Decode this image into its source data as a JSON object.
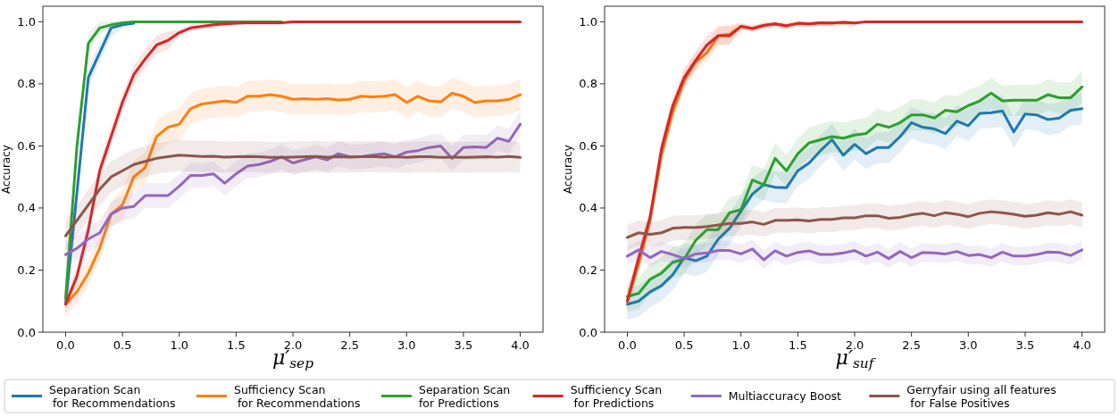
{
  "chart_data": [
    {
      "type": "line",
      "xlabel": "μ′$_{sep}$",
      "ylabel": "Accuracy",
      "xlim": [
        -0.2,
        4.2
      ],
      "ylim": [
        0,
        1.05
      ],
      "xticks": [
        {
          "value": 0,
          "label": "0.0"
        },
        {
          "value": 0.5,
          "label": "0.5"
        },
        {
          "value": 1,
          "label": "1.0"
        },
        {
          "value": 1.5,
          "label": "1.5"
        },
        {
          "value": 2,
          "label": "2.0"
        },
        {
          "value": 2.5,
          "label": "2.5"
        },
        {
          "value": 3,
          "label": "3.0"
        },
        {
          "value": 3.5,
          "label": "3.5"
        },
        {
          "value": 4,
          "label": "4.0"
        }
      ],
      "yticks": [
        {
          "value": 0,
          "label": "0.0"
        },
        {
          "value": 0.2,
          "label": "0.2"
        },
        {
          "value": 0.4,
          "label": "0.4"
        },
        {
          "value": 0.6,
          "label": "0.6"
        },
        {
          "value": 0.8,
          "label": "0.8"
        },
        {
          "value": 1,
          "label": "1.0"
        }
      ],
      "grid": false,
      "legend": "bottom",
      "marker": "none",
      "line_style": "solid",
      "x": [
        0,
        0.1,
        0.2,
        0.3,
        0.4,
        0.5,
        0.6,
        0.7,
        0.8,
        0.9,
        1,
        1.1,
        1.2,
        1.3,
        1.4,
        1.5,
        1.6,
        1.7,
        1.8,
        1.9,
        2,
        2.1,
        2.2,
        2.3,
        2.4,
        2.5,
        2.6,
        2.7,
        2.8,
        2.9,
        3,
        3.1,
        3.2,
        3.3,
        3.4,
        3.5,
        3.6,
        3.7,
        3.8,
        3.9,
        4
      ],
      "series": [
        {
          "name": "Separation Scan\n for Recommendations",
          "color": "#1f77b4",
          "values": [
            0.09,
            0.45,
            0.82,
            0.9,
            0.98,
            0.99,
            0.995,
            null,
            null,
            null,
            null,
            null,
            null,
            null,
            null,
            null,
            null,
            null,
            null,
            null,
            null,
            null,
            null,
            null,
            null,
            null,
            null,
            null,
            null,
            null,
            null,
            null,
            null,
            null,
            null,
            null,
            null,
            null,
            null,
            null,
            null
          ],
          "lower": [
            0.06,
            0.42,
            0.79,
            0.87,
            0.95,
            0.98,
            0.99,
            null,
            null,
            null,
            null,
            null,
            null,
            null,
            null,
            null,
            null,
            null,
            null,
            null,
            null,
            null,
            null,
            null,
            null,
            null,
            null,
            null,
            null,
            null,
            null,
            null,
            null,
            null,
            null,
            null,
            null,
            null,
            null,
            null,
            null
          ],
          "upper": [
            0.12,
            0.48,
            0.85,
            0.93,
            1,
            1,
            1,
            null,
            null,
            null,
            null,
            null,
            null,
            null,
            null,
            null,
            null,
            null,
            null,
            null,
            null,
            null,
            null,
            null,
            null,
            null,
            null,
            null,
            null,
            null,
            null,
            null,
            null,
            null,
            null,
            null,
            null,
            null,
            null,
            null,
            null
          ]
        },
        {
          "name": "Sufficiency Scan\n for Recommendations",
          "color": "#ff7f0e",
          "values": [
            0.09,
            0.13,
            0.19,
            0.27,
            0.38,
            0.41,
            0.5,
            0.53,
            0.63,
            0.66,
            0.67,
            0.72,
            0.735,
            0.74,
            0.745,
            0.74,
            0.76,
            0.76,
            0.765,
            0.76,
            0.75,
            0.752,
            0.75,
            0.752,
            0.748,
            0.75,
            0.76,
            0.758,
            0.76,
            0.765,
            0.74,
            0.76,
            0.745,
            0.742,
            0.77,
            0.76,
            0.74,
            0.745,
            0.745,
            0.75,
            0.765
          ],
          "lower": [
            0.05,
            0.09,
            0.15,
            0.23,
            0.34,
            0.36,
            0.45,
            0.48,
            0.58,
            0.61,
            0.62,
            0.67,
            0.685,
            0.69,
            0.695,
            0.69,
            0.71,
            0.71,
            0.715,
            0.71,
            0.7,
            0.702,
            0.7,
            0.702,
            0.698,
            0.7,
            0.71,
            0.708,
            0.71,
            0.715,
            0.69,
            0.71,
            0.695,
            0.692,
            0.72,
            0.71,
            0.69,
            0.695,
            0.695,
            0.7,
            0.715
          ],
          "upper": [
            0.13,
            0.17,
            0.23,
            0.31,
            0.42,
            0.46,
            0.55,
            0.58,
            0.68,
            0.71,
            0.72,
            0.77,
            0.785,
            0.79,
            0.795,
            0.79,
            0.81,
            0.81,
            0.815,
            0.81,
            0.8,
            0.802,
            0.8,
            0.802,
            0.798,
            0.8,
            0.81,
            0.808,
            0.81,
            0.815,
            0.79,
            0.81,
            0.795,
            0.792,
            0.82,
            0.81,
            0.79,
            0.795,
            0.795,
            0.8,
            0.815
          ]
        },
        {
          "name": "Separation Scan\nfor Predictions",
          "color": "#2ca02c",
          "values": [
            0.11,
            0.6,
            0.93,
            0.98,
            0.99,
            0.997,
            1,
            1,
            1,
            1,
            1,
            1,
            1,
            1,
            1,
            1,
            1,
            1,
            1,
            1,
            null,
            null,
            null,
            null,
            null,
            null,
            null,
            null,
            null,
            null,
            null,
            null,
            null,
            null,
            null,
            null,
            null,
            null,
            null,
            null,
            null
          ],
          "lower": [
            0.08,
            0.57,
            0.9,
            0.96,
            0.98,
            0.99,
            1,
            1,
            1,
            1,
            1,
            1,
            1,
            1,
            1,
            1,
            1,
            1,
            1,
            1,
            null,
            null,
            null,
            null,
            null,
            null,
            null,
            null,
            null,
            null,
            null,
            null,
            null,
            null,
            null,
            null,
            null,
            null,
            null,
            null,
            null
          ],
          "upper": [
            0.14,
            0.63,
            0.96,
            1,
            1,
            1,
            1,
            1,
            1,
            1,
            1,
            1,
            1,
            1,
            1,
            1,
            1,
            1,
            1,
            1,
            null,
            null,
            null,
            null,
            null,
            null,
            null,
            null,
            null,
            null,
            null,
            null,
            null,
            null,
            null,
            null,
            null,
            null,
            null,
            null,
            null
          ]
        },
        {
          "name": "Sufficiency Scan\n for Predictions",
          "color": "#d62728",
          "values": [
            0.09,
            0.18,
            0.33,
            0.52,
            0.63,
            0.74,
            0.83,
            0.88,
            0.925,
            0.94,
            0.965,
            0.98,
            0.985,
            0.99,
            0.993,
            0.995,
            0.997,
            0.997,
            0.997,
            0.997,
            1,
            1,
            1,
            1,
            1,
            1,
            1,
            1,
            1,
            1,
            1,
            1,
            1,
            1,
            1,
            1,
            1,
            1,
            1,
            1,
            1
          ],
          "lower": [
            0.06,
            0.15,
            0.3,
            0.49,
            0.6,
            0.71,
            0.8,
            0.85,
            0.895,
            0.91,
            0.955,
            0.97,
            0.975,
            0.98,
            0.985,
            0.99,
            0.99,
            0.99,
            0.99,
            0.99,
            1,
            1,
            1,
            1,
            1,
            1,
            1,
            1,
            1,
            1,
            1,
            1,
            1,
            1,
            1,
            1,
            1,
            1,
            1,
            1,
            1
          ],
          "upper": [
            0.12,
            0.21,
            0.36,
            0.55,
            0.66,
            0.77,
            0.86,
            0.91,
            0.955,
            0.97,
            0.975,
            0.99,
            0.995,
            1,
            1,
            1,
            1,
            1,
            1,
            1,
            1,
            1,
            1,
            1,
            1,
            1,
            1,
            1,
            1,
            1,
            1,
            1,
            1,
            1,
            1,
            1,
            1,
            1,
            1,
            1,
            1
          ]
        },
        {
          "name": "Multiaccuracy Boost",
          "color": "#9467bd",
          "values": [
            0.25,
            0.27,
            0.3,
            0.32,
            0.38,
            0.4,
            0.405,
            0.44,
            0.44,
            0.44,
            0.47,
            0.505,
            0.505,
            0.51,
            0.48,
            0.51,
            0.535,
            0.54,
            0.55,
            0.565,
            0.545,
            0.555,
            0.565,
            0.555,
            0.575,
            0.565,
            0.565,
            0.57,
            0.575,
            0.565,
            0.58,
            0.585,
            0.595,
            0.6,
            0.56,
            0.595,
            0.597,
            0.595,
            0.625,
            0.615,
            0.67
          ],
          "lower": [
            0.21,
            0.23,
            0.26,
            0.28,
            0.34,
            0.36,
            0.365,
            0.4,
            0.4,
            0.4,
            0.43,
            0.465,
            0.465,
            0.47,
            0.44,
            0.47,
            0.495,
            0.5,
            0.51,
            0.525,
            0.505,
            0.515,
            0.525,
            0.515,
            0.535,
            0.525,
            0.525,
            0.53,
            0.535,
            0.525,
            0.54,
            0.545,
            0.555,
            0.56,
            0.52,
            0.555,
            0.557,
            0.555,
            0.585,
            0.575,
            0.63
          ],
          "upper": [
            0.29,
            0.31,
            0.34,
            0.36,
            0.42,
            0.44,
            0.445,
            0.48,
            0.48,
            0.48,
            0.51,
            0.545,
            0.545,
            0.55,
            0.52,
            0.55,
            0.575,
            0.58,
            0.59,
            0.605,
            0.585,
            0.595,
            0.605,
            0.595,
            0.615,
            0.605,
            0.605,
            0.61,
            0.615,
            0.605,
            0.62,
            0.625,
            0.635,
            0.64,
            0.6,
            0.635,
            0.637,
            0.635,
            0.665,
            0.655,
            0.71
          ]
        },
        {
          "name": "Gerryfair using all features\n for False Positives",
          "color": "#8c564b",
          "values": [
            0.31,
            0.36,
            0.41,
            0.46,
            0.5,
            0.52,
            0.54,
            0.55,
            0.56,
            0.565,
            0.57,
            0.568,
            0.566,
            0.567,
            0.564,
            0.565,
            0.566,
            0.565,
            0.563,
            0.563,
            0.564,
            0.565,
            0.566,
            0.564,
            0.565,
            0.564,
            0.565,
            0.566,
            0.564,
            0.565,
            0.563,
            0.565,
            0.565,
            0.563,
            0.564,
            0.563,
            0.564,
            0.565,
            0.564,
            0.566,
            0.563
          ],
          "lower": [
            0.26,
            0.31,
            0.36,
            0.41,
            0.45,
            0.47,
            0.49,
            0.5,
            0.51,
            0.515,
            0.52,
            0.518,
            0.516,
            0.517,
            0.514,
            0.515,
            0.516,
            0.515,
            0.513,
            0.513,
            0.514,
            0.515,
            0.516,
            0.514,
            0.515,
            0.514,
            0.515,
            0.516,
            0.514,
            0.515,
            0.513,
            0.515,
            0.515,
            0.513,
            0.514,
            0.513,
            0.514,
            0.515,
            0.514,
            0.516,
            0.513
          ],
          "upper": [
            0.36,
            0.41,
            0.46,
            0.51,
            0.55,
            0.57,
            0.59,
            0.6,
            0.61,
            0.615,
            0.62,
            0.618,
            0.616,
            0.617,
            0.614,
            0.615,
            0.616,
            0.615,
            0.613,
            0.613,
            0.614,
            0.615,
            0.616,
            0.614,
            0.615,
            0.614,
            0.615,
            0.616,
            0.614,
            0.615,
            0.613,
            0.615,
            0.615,
            0.613,
            0.614,
            0.613,
            0.614,
            0.615,
            0.614,
            0.616,
            0.613
          ]
        }
      ]
    },
    {
      "type": "line",
      "xlabel": "μ′$_{suf}$",
      "ylabel": "Accuracy",
      "xlim": [
        -0.2,
        4.2
      ],
      "ylim": [
        0,
        1.05
      ],
      "xticks": [
        {
          "value": 0,
          "label": "0.0"
        },
        {
          "value": 0.5,
          "label": "0.5"
        },
        {
          "value": 1,
          "label": "1.0"
        },
        {
          "value": 1.5,
          "label": "1.5"
        },
        {
          "value": 2,
          "label": "2.0"
        },
        {
          "value": 2.5,
          "label": "2.5"
        },
        {
          "value": 3,
          "label": "3.0"
        },
        {
          "value": 3.5,
          "label": "3.5"
        },
        {
          "value": 4,
          "label": "4.0"
        }
      ],
      "yticks": [
        {
          "value": 0,
          "label": "0.0"
        },
        {
          "value": 0.2,
          "label": "0.2"
        },
        {
          "value": 0.4,
          "label": "0.4"
        },
        {
          "value": 0.6,
          "label": "0.6"
        },
        {
          "value": 0.8,
          "label": "0.8"
        },
        {
          "value": 1,
          "label": "1.0"
        }
      ],
      "grid": false,
      "marker": "none",
      "line_style": "solid",
      "x": [
        0,
        0.1,
        0.2,
        0.3,
        0.4,
        0.5,
        0.6,
        0.7,
        0.8,
        0.9,
        1,
        1.1,
        1.2,
        1.3,
        1.4,
        1.5,
        1.6,
        1.7,
        1.8,
        1.9,
        2,
        2.1,
        2.2,
        2.3,
        2.4,
        2.5,
        2.6,
        2.7,
        2.8,
        2.9,
        3,
        3.1,
        3.2,
        3.3,
        3.4,
        3.5,
        3.6,
        3.7,
        3.8,
        3.9,
        4
      ],
      "series": [
        {
          "color": "#1f77b4",
          "values": [
            0.09,
            0.1,
            0.13,
            0.15,
            0.185,
            0.24,
            0.23,
            0.245,
            0.3,
            0.335,
            0.39,
            0.445,
            0.475,
            0.467,
            0.465,
            0.52,
            0.545,
            0.585,
            0.62,
            0.57,
            0.605,
            0.575,
            0.595,
            0.595,
            0.63,
            0.675,
            0.66,
            0.655,
            0.64,
            0.68,
            0.665,
            0.705,
            0.707,
            0.713,
            0.645,
            0.703,
            0.7,
            0.685,
            0.69,
            0.715,
            0.72
          ],
          "lower": [
            0.04,
            0.05,
            0.08,
            0.1,
            0.135,
            0.19,
            0.18,
            0.195,
            0.25,
            0.285,
            0.34,
            0.395,
            0.425,
            0.417,
            0.415,
            0.47,
            0.495,
            0.535,
            0.57,
            0.52,
            0.555,
            0.525,
            0.545,
            0.545,
            0.58,
            0.625,
            0.61,
            0.605,
            0.59,
            0.63,
            0.615,
            0.655,
            0.657,
            0.663,
            0.595,
            0.653,
            0.65,
            0.635,
            0.64,
            0.665,
            0.67
          ],
          "upper": [
            0.14,
            0.15,
            0.18,
            0.2,
            0.235,
            0.29,
            0.28,
            0.295,
            0.35,
            0.385,
            0.44,
            0.495,
            0.525,
            0.517,
            0.515,
            0.57,
            0.595,
            0.635,
            0.67,
            0.62,
            0.655,
            0.625,
            0.645,
            0.645,
            0.68,
            0.725,
            0.71,
            0.705,
            0.69,
            0.73,
            0.715,
            0.755,
            0.757,
            0.763,
            0.695,
            0.753,
            0.75,
            0.735,
            0.74,
            0.765,
            0.77
          ]
        },
        {
          "color": "#ff7f0e",
          "values": [
            0.1,
            0.22,
            0.36,
            0.57,
            0.71,
            0.81,
            0.87,
            0.9,
            0.955,
            0.96,
            0.985,
            0.978,
            0.988,
            0.993,
            0.987,
            0.995,
            0.993,
            0.997,
            0.996,
            0.998,
            0.996,
            null,
            null,
            null,
            null,
            null,
            null,
            null,
            null,
            null,
            null,
            null,
            null,
            null,
            null,
            null,
            null,
            null,
            null,
            null,
            null
          ],
          "lower": [
            0.07,
            0.19,
            0.33,
            0.54,
            0.68,
            0.78,
            0.84,
            0.87,
            0.925,
            0.93,
            0.975,
            0.968,
            0.978,
            0.983,
            0.977,
            0.985,
            0.983,
            0.987,
            0.986,
            0.988,
            0.986,
            null,
            null,
            null,
            null,
            null,
            null,
            null,
            null,
            null,
            null,
            null,
            null,
            null,
            null,
            null,
            null,
            null,
            null,
            null,
            null
          ],
          "upper": [
            0.13,
            0.25,
            0.39,
            0.6,
            0.74,
            0.84,
            0.9,
            0.93,
            0.985,
            0.99,
            0.995,
            0.988,
            0.998,
            1,
            0.997,
            1,
            1,
            1,
            1,
            1,
            1,
            null,
            null,
            null,
            null,
            null,
            null,
            null,
            null,
            null,
            null,
            null,
            null,
            null,
            null,
            null,
            null,
            null,
            null,
            null,
            null
          ]
        },
        {
          "color": "#2ca02c",
          "values": [
            0.115,
            0.125,
            0.17,
            0.19,
            0.225,
            0.235,
            0.295,
            0.33,
            0.33,
            0.385,
            0.395,
            0.49,
            0.475,
            0.56,
            0.52,
            0.575,
            0.61,
            0.62,
            0.63,
            0.625,
            0.635,
            0.64,
            0.67,
            0.66,
            0.675,
            0.7,
            0.7,
            0.69,
            0.715,
            0.71,
            0.73,
            0.745,
            0.77,
            0.745,
            0.747,
            0.747,
            0.747,
            0.765,
            0.755,
            0.755,
            0.79
          ],
          "lower": [
            0.065,
            0.075,
            0.12,
            0.14,
            0.175,
            0.185,
            0.245,
            0.28,
            0.28,
            0.335,
            0.345,
            0.44,
            0.425,
            0.51,
            0.47,
            0.525,
            0.56,
            0.57,
            0.58,
            0.575,
            0.585,
            0.59,
            0.62,
            0.61,
            0.625,
            0.65,
            0.65,
            0.64,
            0.665,
            0.66,
            0.68,
            0.695,
            0.72,
            0.695,
            0.697,
            0.697,
            0.697,
            0.715,
            0.705,
            0.705,
            0.74
          ],
          "upper": [
            0.165,
            0.175,
            0.22,
            0.24,
            0.275,
            0.285,
            0.345,
            0.38,
            0.38,
            0.435,
            0.445,
            0.54,
            0.525,
            0.61,
            0.57,
            0.625,
            0.66,
            0.67,
            0.68,
            0.675,
            0.685,
            0.69,
            0.72,
            0.71,
            0.725,
            0.75,
            0.75,
            0.74,
            0.765,
            0.76,
            0.78,
            0.795,
            0.82,
            0.795,
            0.797,
            0.797,
            0.797,
            0.815,
            0.805,
            0.805,
            0.84
          ]
        },
        {
          "color": "#d62728",
          "values": [
            0.1,
            0.24,
            0.37,
            0.59,
            0.73,
            0.82,
            0.875,
            0.925,
            0.955,
            0.955,
            0.985,
            0.978,
            0.988,
            0.993,
            0.987,
            0.995,
            0.993,
            0.997,
            0.996,
            0.998,
            0.996,
            1,
            1,
            1,
            1,
            1,
            1,
            1,
            1,
            1,
            1,
            1,
            1,
            1,
            1,
            1,
            1,
            1,
            1,
            1,
            1
          ],
          "lower": [
            0.07,
            0.21,
            0.34,
            0.56,
            0.7,
            0.79,
            0.845,
            0.895,
            0.925,
            0.925,
            0.975,
            0.968,
            0.978,
            0.983,
            0.977,
            0.985,
            0.983,
            0.987,
            0.986,
            0.988,
            0.986,
            1,
            1,
            1,
            1,
            1,
            1,
            1,
            1,
            1,
            1,
            1,
            1,
            1,
            1,
            1,
            1,
            1,
            1,
            1,
            1
          ],
          "upper": [
            0.13,
            0.27,
            0.4,
            0.62,
            0.76,
            0.85,
            0.905,
            0.955,
            0.985,
            0.985,
            0.995,
            0.988,
            0.998,
            1,
            0.997,
            1,
            1,
            1,
            1,
            1,
            1,
            1,
            1,
            1,
            1,
            1,
            1,
            1,
            1,
            1,
            1,
            1,
            1,
            1,
            1,
            1,
            1,
            1,
            1,
            1,
            1
          ]
        },
        {
          "color": "#9467bd",
          "values": [
            0.245,
            0.265,
            0.24,
            0.26,
            0.25,
            0.237,
            0.252,
            0.255,
            0.263,
            0.263,
            0.252,
            0.268,
            0.233,
            0.262,
            0.245,
            0.257,
            0.262,
            0.25,
            0.25,
            0.255,
            0.263,
            0.245,
            0.258,
            0.237,
            0.26,
            0.24,
            0.257,
            0.255,
            0.252,
            0.26,
            0.247,
            0.25,
            0.24,
            0.258,
            0.245,
            0.245,
            0.25,
            0.258,
            0.257,
            0.247,
            0.265
          ],
          "lower": [
            0.215,
            0.235,
            0.21,
            0.23,
            0.22,
            0.207,
            0.222,
            0.225,
            0.233,
            0.233,
            0.222,
            0.238,
            0.203,
            0.232,
            0.215,
            0.227,
            0.232,
            0.22,
            0.22,
            0.225,
            0.233,
            0.215,
            0.228,
            0.207,
            0.23,
            0.21,
            0.227,
            0.225,
            0.222,
            0.23,
            0.217,
            0.22,
            0.21,
            0.228,
            0.215,
            0.215,
            0.22,
            0.228,
            0.227,
            0.217,
            0.235
          ],
          "upper": [
            0.275,
            0.295,
            0.27,
            0.29,
            0.28,
            0.267,
            0.282,
            0.285,
            0.293,
            0.293,
            0.282,
            0.298,
            0.263,
            0.292,
            0.275,
            0.287,
            0.292,
            0.28,
            0.28,
            0.285,
            0.293,
            0.275,
            0.288,
            0.267,
            0.29,
            0.27,
            0.287,
            0.285,
            0.282,
            0.29,
            0.277,
            0.28,
            0.27,
            0.288,
            0.275,
            0.275,
            0.28,
            0.288,
            0.287,
            0.277,
            0.295
          ]
        },
        {
          "color": "#8c564b",
          "values": [
            0.305,
            0.32,
            0.315,
            0.32,
            0.335,
            0.337,
            0.337,
            0.34,
            0.345,
            0.35,
            0.35,
            0.355,
            0.347,
            0.36,
            0.36,
            0.362,
            0.358,
            0.363,
            0.363,
            0.368,
            0.368,
            0.375,
            0.375,
            0.367,
            0.37,
            0.378,
            0.383,
            0.375,
            0.385,
            0.38,
            0.372,
            0.383,
            0.388,
            0.385,
            0.38,
            0.373,
            0.377,
            0.385,
            0.38,
            0.388,
            0.377
          ],
          "lower": [
            0.265,
            0.28,
            0.275,
            0.28,
            0.295,
            0.297,
            0.297,
            0.3,
            0.305,
            0.31,
            0.31,
            0.315,
            0.307,
            0.32,
            0.32,
            0.322,
            0.318,
            0.323,
            0.323,
            0.328,
            0.328,
            0.335,
            0.335,
            0.327,
            0.33,
            0.338,
            0.343,
            0.335,
            0.345,
            0.34,
            0.332,
            0.343,
            0.348,
            0.345,
            0.34,
            0.333,
            0.337,
            0.345,
            0.34,
            0.348,
            0.337
          ],
          "upper": [
            0.345,
            0.36,
            0.355,
            0.36,
            0.375,
            0.377,
            0.377,
            0.38,
            0.385,
            0.39,
            0.39,
            0.395,
            0.387,
            0.4,
            0.4,
            0.402,
            0.398,
            0.403,
            0.403,
            0.408,
            0.408,
            0.415,
            0.415,
            0.407,
            0.41,
            0.418,
            0.423,
            0.415,
            0.425,
            0.42,
            0.412,
            0.423,
            0.428,
            0.425,
            0.42,
            0.413,
            0.417,
            0.425,
            0.42,
            0.428,
            0.417
          ]
        }
      ]
    }
  ]
}
